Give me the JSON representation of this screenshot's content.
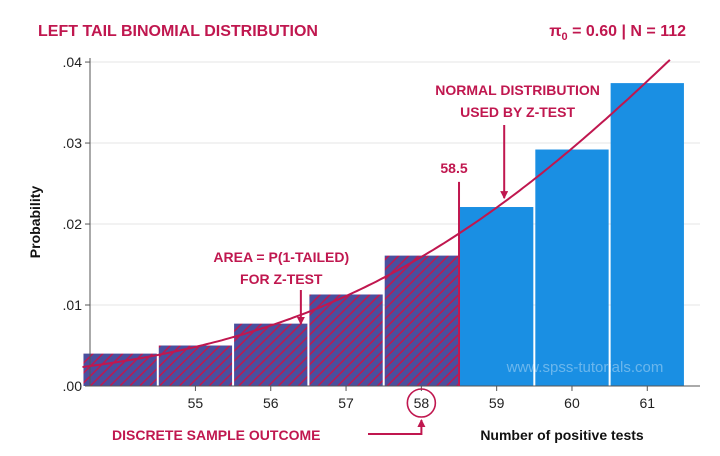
{
  "chart_data": {
    "type": "bar",
    "title": "LEFT TAIL BINOMIAL DISTRIBUTION",
    "subtitle": {
      "pi_symbol": "π",
      "pi_subscript": "0",
      "rest": " = 0.60 | N = 112"
    },
    "xlabel": "Number of positive tests",
    "ylabel": "Probability",
    "categories": [
      "55",
      "56",
      "57",
      "58",
      "59",
      "60",
      "61"
    ],
    "x": [
      54,
      55,
      56,
      57,
      58,
      59,
      60,
      61
    ],
    "values": [
      0.004,
      0.005,
      0.0077,
      0.0113,
      0.0161,
      0.0221,
      0.0292,
      0.0374
    ],
    "xlim": [
      53.6,
      61.7
    ],
    "ylim": [
      0,
      0.0405
    ],
    "yticks": [
      0,
      0.01,
      0.02,
      0.03,
      0.04
    ],
    "ytick_labels": [
      ".00",
      ".01",
      ".02",
      ".03",
      ".04"
    ],
    "cutoff": 58.5,
    "cutoff_label": "58.5",
    "highlighted_category": "58",
    "normal_curve": {
      "mean": 67.2,
      "sd": 5.185
    },
    "annotations": {
      "normal_line1": "NORMAL DISTRIBUTION",
      "normal_line2": "USED BY Z-TEST",
      "area_line1": "AREA = P(1-TAILED)",
      "area_line2": "FOR Z-TEST",
      "discrete": "DISCRETE SAMPLE OUTCOME"
    },
    "watermark": "www.spss-tutorials.com",
    "colors": {
      "bar": "#1a8fe3",
      "accent": "#c0174f",
      "hatch_fill": "#4a4f9e",
      "axis": "#555555"
    }
  }
}
